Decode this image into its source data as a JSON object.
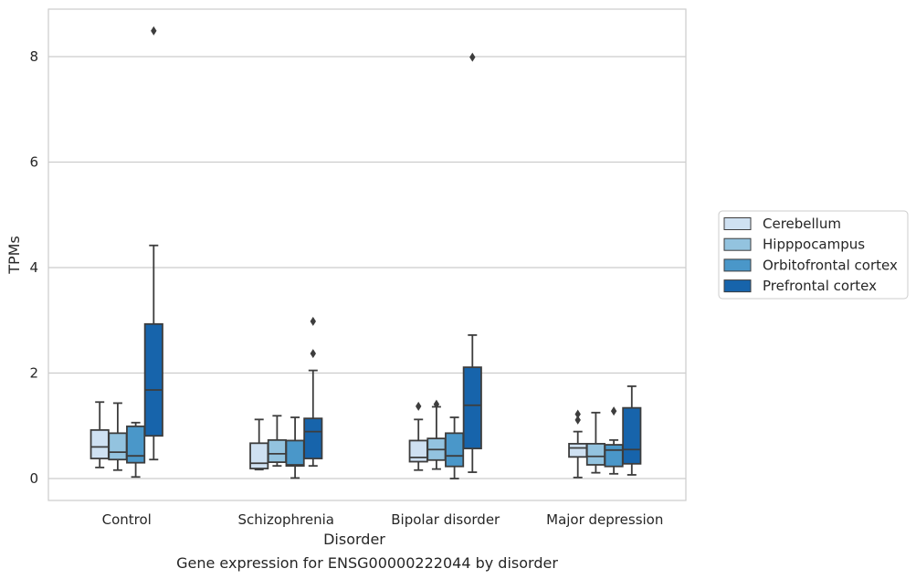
{
  "caption": "Gene expression for ENSG00000222044 by disorder",
  "chart_data": {
    "type": "box",
    "xlabel": "Disorder",
    "ylabel": "TPMs",
    "ylim": [
      -0.42,
      8.9
    ],
    "yticks": [
      0,
      2,
      4,
      6,
      8
    ],
    "grid": "horizontal",
    "legend_position": "right",
    "categories": [
      "Control",
      "Schizophrenia",
      "Bipolar disorder",
      "Major depression"
    ],
    "series": [
      {
        "name": "Cerebellum",
        "color": "#cfe1f2",
        "boxes": [
          {
            "whislo": 0.21,
            "q1": 0.38,
            "med": 0.6,
            "q3": 0.92,
            "whishi": 1.45,
            "fliers": []
          },
          {
            "whislo": 0.17,
            "q1": 0.19,
            "med": 0.29,
            "q3": 0.67,
            "whishi": 1.12,
            "fliers": []
          },
          {
            "whislo": 0.16,
            "q1": 0.32,
            "med": 0.4,
            "q3": 0.72,
            "whishi": 1.12,
            "fliers": [
              1.37
            ]
          },
          {
            "whislo": 0.02,
            "q1": 0.41,
            "med": 0.58,
            "q3": 0.66,
            "whishi": 0.89,
            "fliers": [
              1.11,
              1.22
            ]
          }
        ]
      },
      {
        "name": "Hipppocampus",
        "color": "#93c3df",
        "boxes": [
          {
            "whislo": 0.16,
            "q1": 0.36,
            "med": 0.5,
            "q3": 0.86,
            "whishi": 1.43,
            "fliers": []
          },
          {
            "whislo": 0.24,
            "q1": 0.31,
            "med": 0.47,
            "q3": 0.73,
            "whishi": 1.19,
            "fliers": []
          },
          {
            "whislo": 0.18,
            "q1": 0.35,
            "med": 0.55,
            "q3": 0.76,
            "whishi": 1.36,
            "fliers": [
              1.41
            ]
          },
          {
            "whislo": 0.11,
            "q1": 0.26,
            "med": 0.42,
            "q3": 0.66,
            "whishi": 1.25,
            "fliers": []
          }
        ]
      },
      {
        "name": "Orbitofrontal cortex",
        "color": "#4a97c9",
        "boxes": [
          {
            "whislo": 0.03,
            "q1": 0.3,
            "med": 0.43,
            "q3": 0.99,
            "whishi": 1.06,
            "fliers": []
          },
          {
            "whislo": 0.01,
            "q1": 0.24,
            "med": 0.26,
            "q3": 0.72,
            "whishi": 1.16,
            "fliers": []
          },
          {
            "whislo": 0.0,
            "q1": 0.23,
            "med": 0.43,
            "q3": 0.86,
            "whishi": 1.16,
            "fliers": []
          },
          {
            "whislo": 0.09,
            "q1": 0.23,
            "med": 0.54,
            "q3": 0.64,
            "whishi": 0.73,
            "fliers": [
              1.28
            ]
          }
        ]
      },
      {
        "name": "Prefrontal cortex",
        "color": "#1764ab",
        "boxes": [
          {
            "whislo": 0.36,
            "q1": 0.81,
            "med": 1.68,
            "q3": 2.93,
            "whishi": 4.42,
            "fliers": [
              8.49
            ]
          },
          {
            "whislo": 0.24,
            "q1": 0.38,
            "med": 0.89,
            "q3": 1.14,
            "whishi": 2.05,
            "fliers": [
              2.37,
              2.98
            ]
          },
          {
            "whislo": 0.12,
            "q1": 0.57,
            "med": 1.39,
            "q3": 2.11,
            "whishi": 2.72,
            "fliers": [
              7.99
            ]
          },
          {
            "whislo": 0.07,
            "q1": 0.28,
            "med": 0.55,
            "q3": 1.34,
            "whishi": 1.75,
            "fliers": []
          }
        ]
      }
    ]
  }
}
